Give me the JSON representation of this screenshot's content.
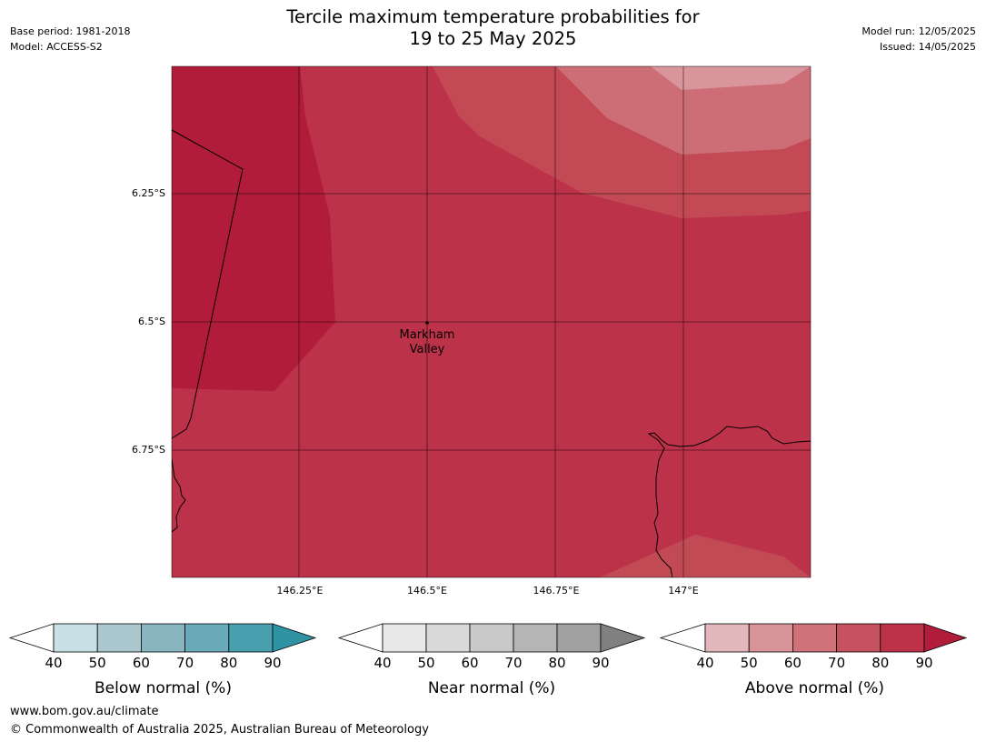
{
  "header": {
    "title_line1": "Tercile maximum temperature probabilities for",
    "title_line2": "19 to 25 May 2025",
    "base_period": "Base period: 1981-2018",
    "model": "Model: ACCESS-S2",
    "model_run": "Model run: 12/05/2025",
    "issued": "Issued: 14/05/2025"
  },
  "map": {
    "lat_labels": [
      "6.25°S",
      "6.5°S",
      "6.75°S"
    ],
    "lon_labels": [
      "146.25°E",
      "146.5°E",
      "146.75°E",
      "147°E"
    ],
    "place": {
      "line1": "Markham",
      "line2": "Valley"
    }
  },
  "colorbars": [
    {
      "label": "Below normal (%)",
      "ticks": [
        "40",
        "50",
        "60",
        "70",
        "80",
        "90"
      ],
      "colors": [
        "#ffffff",
        "#c8e1e6",
        "#a9c7cc",
        "#89b5c1",
        "#6aabb9",
        "#48a0ae",
        "#2f93a3"
      ]
    },
    {
      "label": "Near normal (%)",
      "ticks": [
        "40",
        "50",
        "60",
        "70",
        "80",
        "90"
      ],
      "colors": [
        "#ffffff",
        "#e8e8e8",
        "#d9d9d9",
        "#c9c9c9",
        "#b5b5b5",
        "#a0a0a0",
        "#808080"
      ]
    },
    {
      "label": "Above normal (%)",
      "ticks": [
        "40",
        "50",
        "60",
        "70",
        "80",
        "90"
      ],
      "colors": [
        "#ffffff",
        "#e2b8bd",
        "#d89399",
        "#cf727a",
        "#c5525e",
        "#bd3249",
        "#b01c39"
      ]
    }
  ],
  "footer": {
    "url": "www.bom.gov.au/climate",
    "copyright": "© Commonwealth of Australia 2025, Australian Bureau of Meteorology"
  }
}
